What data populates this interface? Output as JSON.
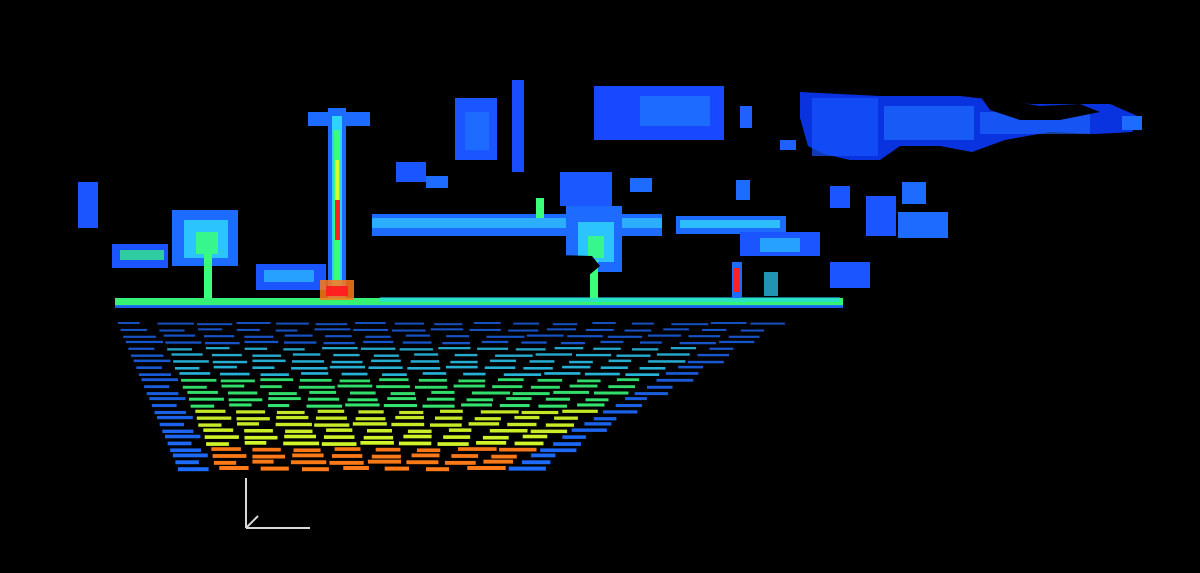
{
  "scene": {
    "type": "lidar-point-cloud",
    "background": "#000000",
    "colormap": [
      "#0a1fd8",
      "#1e6bff",
      "#2fd3ff",
      "#39ff7a",
      "#d8ff2a",
      "#ff7a18",
      "#ff2020"
    ],
    "annotation_color": "#d9d9d9",
    "elements": [
      "ground-scanlines",
      "horizon-ground-line",
      "tall-pole",
      "small-red-post",
      "left-tree",
      "center-tree-structure",
      "long-overhead-beam",
      "overhead-blue-clusters",
      "right-building-facade",
      "axis-indicator"
    ]
  }
}
